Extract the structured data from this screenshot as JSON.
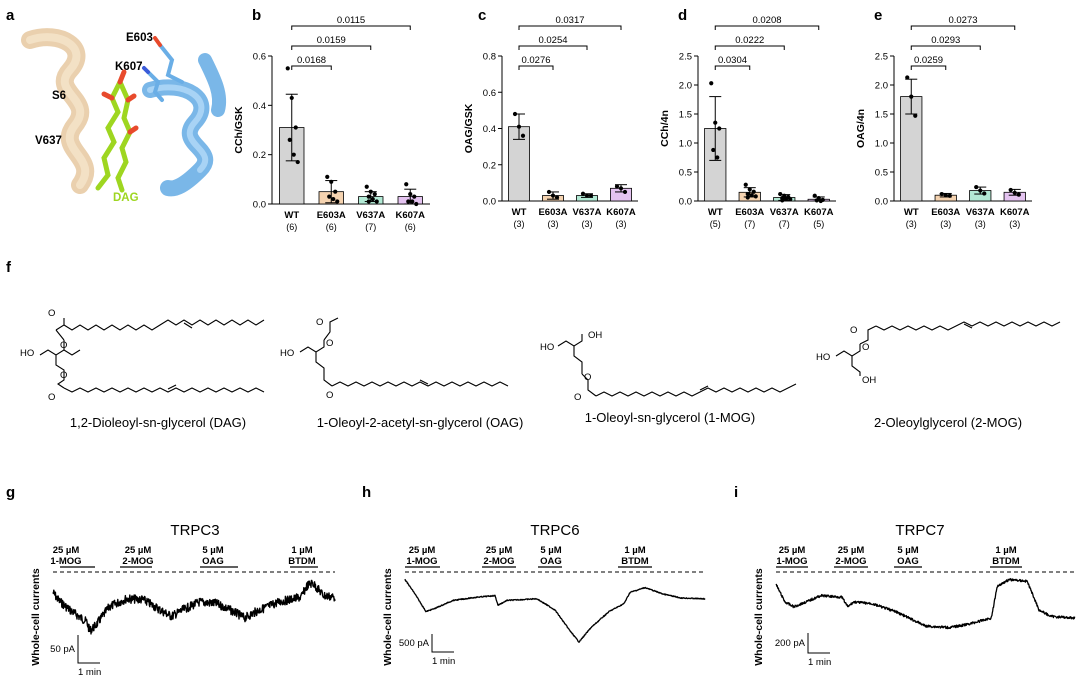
{
  "panel_a": {
    "label": "a",
    "residues": [
      "E603",
      "K607",
      "S6",
      "V637"
    ],
    "ligand": "DAG",
    "colors": {
      "helix_left": "#f0d6b4",
      "helix_right": "#8fc5ef",
      "ligand": "#9ed620",
      "oxygen": "#e84a2c",
      "nitrogen": "#3a5bd9"
    }
  },
  "chart_data": [
    {
      "id": "b",
      "type": "bar",
      "ylabel": "CCh/GSK",
      "ylim": [
        0,
        0.6
      ],
      "yticks": [
        "0.0",
        "0.2",
        "0.4",
        "0.6"
      ],
      "categories": [
        "WT",
        "E603A",
        "V637A",
        "K607A"
      ],
      "n": [
        "(6)",
        "(6)",
        "(7)",
        "(6)"
      ],
      "values": [
        0.31,
        0.05,
        0.03,
        0.03
      ],
      "errors": [
        0.135,
        0.045,
        0.02,
        0.03
      ],
      "points": [
        [
          0.55,
          0.43,
          0.31,
          0.26,
          0.2,
          0.17
        ],
        [
          0.11,
          0.09,
          0.05,
          0.03,
          0.02,
          0.01
        ],
        [
          0.07,
          0.05,
          0.04,
          0.03,
          0.02,
          0.01,
          0.01
        ],
        [
          0.08,
          0.04,
          0.03,
          0.01,
          0.01,
          0.0
        ]
      ],
      "colors": [
        "#d4d4d4",
        "#f5d3b0",
        "#b3ead5",
        "#e4c3f0"
      ],
      "comparisons": [
        {
          "pair": [
            0,
            1
          ],
          "p": "0.0168"
        },
        {
          "pair": [
            0,
            2
          ],
          "p": "0.0159"
        },
        {
          "pair": [
            0,
            3
          ],
          "p": "0.0115"
        }
      ]
    },
    {
      "id": "c",
      "type": "bar",
      "ylabel": "OAG/GSK",
      "ylim": [
        0,
        0.8
      ],
      "yticks": [
        "0.0",
        "0.2",
        "0.4",
        "0.6",
        "0.8"
      ],
      "categories": [
        "WT",
        "E603A",
        "V637A",
        "K607A"
      ],
      "n": [
        "(3)",
        "(3)",
        "(3)",
        "(3)"
      ],
      "values": [
        0.41,
        0.03,
        0.03,
        0.07
      ],
      "errors": [
        0.07,
        0.02,
        0.01,
        0.02
      ],
      "points": [
        [
          0.48,
          0.41,
          0.36
        ],
        [
          0.05,
          0.03,
          0.02
        ],
        [
          0.04,
          0.03,
          0.03
        ],
        [
          0.08,
          0.07,
          0.05
        ]
      ],
      "colors": [
        "#d4d4d4",
        "#f5d3b0",
        "#b3ead5",
        "#e4c3f0"
      ],
      "comparisons": [
        {
          "pair": [
            0,
            1
          ],
          "p": "0.0276"
        },
        {
          "pair": [
            0,
            2
          ],
          "p": "0.0254"
        },
        {
          "pair": [
            0,
            3
          ],
          "p": "0.0317"
        }
      ]
    },
    {
      "id": "d",
      "type": "bar",
      "ylabel": "CCh/4n",
      "ylim": [
        0,
        2.5
      ],
      "yticks": [
        "0.0",
        "0.5",
        "1.0",
        "1.5",
        "2.0",
        "2.5"
      ],
      "categories": [
        "WT",
        "E603A",
        "V637A",
        "K607A"
      ],
      "n": [
        "(5)",
        "(7)",
        "(7)",
        "(5)"
      ],
      "values": [
        1.25,
        0.15,
        0.06,
        0.03
      ],
      "errors": [
        0.55,
        0.08,
        0.05,
        0.04
      ],
      "points": [
        [
          2.03,
          1.35,
          1.25,
          0.88,
          0.75
        ],
        [
          0.28,
          0.2,
          0.16,
          0.12,
          0.1,
          0.08,
          0.06
        ],
        [
          0.12,
          0.09,
          0.07,
          0.05,
          0.04,
          0.03,
          0.01
        ],
        [
          0.09,
          0.05,
          0.02,
          0.01,
          0.0
        ]
      ],
      "colors": [
        "#d4d4d4",
        "#f5d3b0",
        "#b3ead5",
        "#e4c3f0"
      ],
      "comparisons": [
        {
          "pair": [
            0,
            1
          ],
          "p": "0.0304"
        },
        {
          "pair": [
            0,
            2
          ],
          "p": "0.0222"
        },
        {
          "pair": [
            0,
            3
          ],
          "p": "0.0208"
        }
      ]
    },
    {
      "id": "e",
      "type": "bar",
      "ylabel": "OAG/4n",
      "ylim": [
        0,
        2.5
      ],
      "yticks": [
        "0.0",
        "0.5",
        "1.0",
        "1.5",
        "2.0",
        "2.5"
      ],
      "categories": [
        "WT",
        "E603A",
        "V637A",
        "K607A"
      ],
      "n": [
        "(3)",
        "(3)",
        "(3)",
        "(3)"
      ],
      "values": [
        1.8,
        0.1,
        0.18,
        0.15
      ],
      "errors": [
        0.3,
        0.03,
        0.06,
        0.05
      ],
      "points": [
        [
          2.13,
          1.8,
          1.47
        ],
        [
          0.12,
          0.1,
          0.09
        ],
        [
          0.24,
          0.18,
          0.13
        ],
        [
          0.19,
          0.14,
          0.11
        ]
      ],
      "colors": [
        "#d4d4d4",
        "#f5d3b0",
        "#b3ead5",
        "#e4c3f0"
      ],
      "comparisons": [
        {
          "pair": [
            0,
            1
          ],
          "p": "0.0259"
        },
        {
          "pair": [
            0,
            2
          ],
          "p": "0.0293"
        },
        {
          "pair": [
            0,
            3
          ],
          "p": "0.0273"
        }
      ]
    }
  ],
  "panel_f": {
    "label": "f",
    "structures": [
      {
        "name": "1,2-Dioleoyl-sn-glycerol (DAG)"
      },
      {
        "name": "1-Oleoyl-2-acetyl-sn-glycerol (OAG)"
      },
      {
        "name": "1-Oleoyl-sn-glycerol (1-MOG)"
      },
      {
        "name": "2-Oleoylglycerol (2-MOG)"
      }
    ],
    "atoms": {
      "oxygen": "O",
      "hydroxyl": "HO",
      "hydroxyl_right": "OH"
    }
  },
  "traces": [
    {
      "label": "g",
      "title": "TRPC3",
      "ylabel": "Whole-cell currents",
      "scale_current": "50 pA",
      "scale_time": "1 min",
      "drugs": [
        {
          "conc": "25 µM",
          "name": "1-MOG"
        },
        {
          "conc": "25 µM",
          "name": "2-MOG"
        },
        {
          "conc": "5 µM",
          "name": "OAG"
        },
        {
          "conc": "1 µM",
          "name": "BTDM"
        }
      ]
    },
    {
      "label": "h",
      "title": "TRPC6",
      "ylabel": "Whole-cell currents",
      "scale_current": "500 pA",
      "scale_time": "1 min",
      "drugs": [
        {
          "conc": "25 µM",
          "name": "1-MOG"
        },
        {
          "conc": "25 µM",
          "name": "2-MOG"
        },
        {
          "conc": "5 µM",
          "name": "OAG"
        },
        {
          "conc": "1 µM",
          "name": "BTDM"
        }
      ]
    },
    {
      "label": "i",
      "title": "TRPC7",
      "ylabel": "Whole-cell currents",
      "scale_current": "200 pA",
      "scale_time": "1 min",
      "drugs": [
        {
          "conc": "25 µM",
          "name": "1-MOG"
        },
        {
          "conc": "25 µM",
          "name": "2-MOG"
        },
        {
          "conc": "5 µM",
          "name": "OAG"
        },
        {
          "conc": "1 µM",
          "name": "BTDM"
        }
      ]
    }
  ]
}
